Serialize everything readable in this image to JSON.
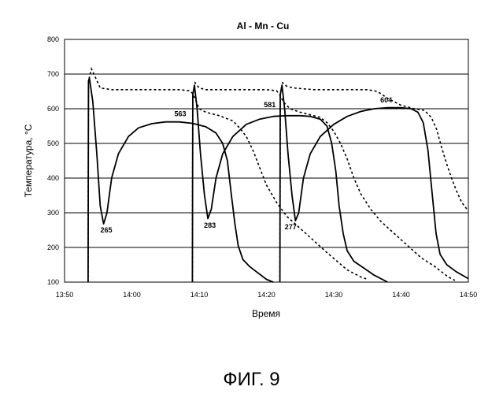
{
  "figure_caption": "ФИГ. 9",
  "chart_data": {
    "type": "line",
    "title": "Al - Mn - Cu",
    "xlabel": "Время",
    "ylabel": "Температура, °C",
    "x_unit": "minutes after 13:50 (hh:mm axis)",
    "xlim": [
      0,
      60
    ],
    "ylim": [
      100,
      800
    ],
    "x_tick_labels": [
      "13:50",
      "14:00",
      "14:10",
      "14:20",
      "14:30",
      "14:40",
      "14:50"
    ],
    "y_tick_labels": [
      "100",
      "200",
      "300",
      "400",
      "500",
      "600",
      "700",
      "800"
    ],
    "grid": "horizontal",
    "series": [
      {
        "style": "solid",
        "points": [
          [
            3.5,
            100
          ],
          [
            3.55,
            680
          ],
          [
            3.7,
            688
          ],
          [
            4.2,
            620
          ],
          [
            4.8,
            470
          ],
          [
            5.3,
            320
          ],
          [
            5.8,
            268
          ],
          [
            6.3,
            300
          ],
          [
            7.0,
            400
          ],
          [
            8.0,
            470
          ],
          [
            9.5,
            520
          ],
          [
            11,
            545
          ],
          [
            13,
            557
          ],
          [
            15,
            562
          ],
          [
            17,
            562
          ],
          [
            19,
            558
          ],
          [
            21,
            548
          ],
          [
            22.5,
            530
          ],
          [
            23.5,
            500
          ],
          [
            24.2,
            450
          ],
          [
            24.8,
            350
          ],
          [
            25.3,
            270
          ],
          [
            25.8,
            205
          ],
          [
            26.5,
            165
          ],
          [
            27.5,
            145
          ],
          [
            28.5,
            130
          ],
          [
            30,
            108
          ],
          [
            31,
            100
          ]
        ]
      },
      {
        "style": "solid",
        "points": [
          [
            19.0,
            100
          ],
          [
            19.05,
            640
          ],
          [
            19.3,
            668
          ],
          [
            19.7,
            600
          ],
          [
            20.2,
            470
          ],
          [
            20.8,
            350
          ],
          [
            21.3,
            283
          ],
          [
            21.8,
            310
          ],
          [
            22.5,
            400
          ],
          [
            23.5,
            470
          ],
          [
            25,
            520
          ],
          [
            27,
            555
          ],
          [
            29,
            570
          ],
          [
            31,
            578
          ],
          [
            33,
            580
          ],
          [
            35,
            580
          ],
          [
            36.5,
            578
          ],
          [
            38,
            570
          ],
          [
            39,
            550
          ],
          [
            39.7,
            500
          ],
          [
            40.3,
            420
          ],
          [
            40.8,
            320
          ],
          [
            41.4,
            240
          ],
          [
            42,
            190
          ],
          [
            43,
            160
          ],
          [
            44.5,
            140
          ],
          [
            46,
            120
          ],
          [
            48,
            100
          ]
        ]
      },
      {
        "style": "solid",
        "points": [
          [
            32.0,
            100
          ],
          [
            32.05,
            640
          ],
          [
            32.3,
            668
          ],
          [
            32.7,
            600
          ],
          [
            33.2,
            470
          ],
          [
            33.8,
            350
          ],
          [
            34.3,
            277
          ],
          [
            34.8,
            300
          ],
          [
            35.5,
            400
          ],
          [
            36.5,
            470
          ],
          [
            38,
            520
          ],
          [
            40,
            555
          ],
          [
            42,
            578
          ],
          [
            44,
            592
          ],
          [
            46,
            600
          ],
          [
            48,
            603
          ],
          [
            50,
            603
          ],
          [
            51.5,
            600
          ],
          [
            52.5,
            590
          ],
          [
            53.3,
            560
          ],
          [
            54,
            480
          ],
          [
            54.6,
            360
          ],
          [
            55.2,
            240
          ],
          [
            55.8,
            180
          ],
          [
            56.8,
            150
          ],
          [
            58.2,
            130
          ],
          [
            60,
            110
          ]
        ]
      },
      {
        "style": "dashed",
        "points": [
          [
            3.5,
            100
          ],
          [
            3.55,
            680
          ],
          [
            4.0,
            715
          ],
          [
            4.6,
            690
          ],
          [
            5.3,
            660
          ],
          [
            7,
            655
          ],
          [
            9,
            655
          ],
          [
            12,
            655
          ],
          [
            15,
            655
          ],
          [
            17,
            655
          ],
          [
            18.5,
            652
          ],
          [
            19,
            645
          ],
          [
            19.5,
            625
          ],
          [
            20,
            600
          ],
          [
            21,
            590
          ],
          [
            23,
            580
          ],
          [
            25,
            565
          ],
          [
            26,
            545
          ],
          [
            27,
            520
          ],
          [
            28,
            480
          ],
          [
            29,
            430
          ],
          [
            30,
            380
          ],
          [
            31.5,
            330
          ],
          [
            33,
            290
          ],
          [
            35,
            255
          ],
          [
            37,
            220
          ],
          [
            39,
            185
          ],
          [
            40.5,
            160
          ],
          [
            42,
            135
          ],
          [
            44,
            115
          ],
          [
            45,
            108
          ]
        ]
      },
      {
        "style": "dashed",
        "points": [
          [
            19.0,
            100
          ],
          [
            19.05,
            640
          ],
          [
            19.4,
            675
          ],
          [
            20,
            660
          ],
          [
            21,
            655
          ],
          [
            24,
            655
          ],
          [
            27,
            655
          ],
          [
            30,
            655
          ],
          [
            31.5,
            652
          ],
          [
            32,
            640
          ],
          [
            32.5,
            620
          ],
          [
            33.5,
            600
          ],
          [
            35,
            590
          ],
          [
            37,
            580
          ],
          [
            38,
            575
          ],
          [
            39,
            560
          ],
          [
            40,
            535
          ],
          [
            41,
            500
          ],
          [
            42,
            455
          ],
          [
            43,
            400
          ],
          [
            44,
            355
          ],
          [
            45.5,
            310
          ],
          [
            47,
            275
          ],
          [
            49,
            240
          ],
          [
            51,
            205
          ],
          [
            53,
            170
          ],
          [
            55,
            145
          ],
          [
            57,
            115
          ],
          [
            58,
            105
          ]
        ]
      },
      {
        "style": "dashed",
        "points": [
          [
            32.0,
            100
          ],
          [
            32.05,
            640
          ],
          [
            32.4,
            675
          ],
          [
            33,
            665
          ],
          [
            34,
            660
          ],
          [
            37,
            655
          ],
          [
            41,
            655
          ],
          [
            45,
            655
          ],
          [
            46.5,
            650
          ],
          [
            48,
            630
          ],
          [
            50,
            610
          ],
          [
            52,
            600
          ],
          [
            53.5,
            595
          ],
          [
            54.5,
            575
          ],
          [
            55.3,
            540
          ],
          [
            56,
            490
          ],
          [
            56.8,
            440
          ],
          [
            57.5,
            400
          ],
          [
            58.3,
            360
          ],
          [
            59,
            330
          ],
          [
            60,
            305
          ]
        ]
      }
    ],
    "annotations": [
      {
        "text": "265",
        "x": 6.2,
        "y": 243
      },
      {
        "text": "283",
        "x": 21.6,
        "y": 257
      },
      {
        "text": "277",
        "x": 33.6,
        "y": 252
      },
      {
        "text": "563",
        "x": 17.2,
        "y": 578
      },
      {
        "text": "581",
        "x": 30.5,
        "y": 604
      },
      {
        "text": "604",
        "x": 47.8,
        "y": 618
      }
    ]
  }
}
